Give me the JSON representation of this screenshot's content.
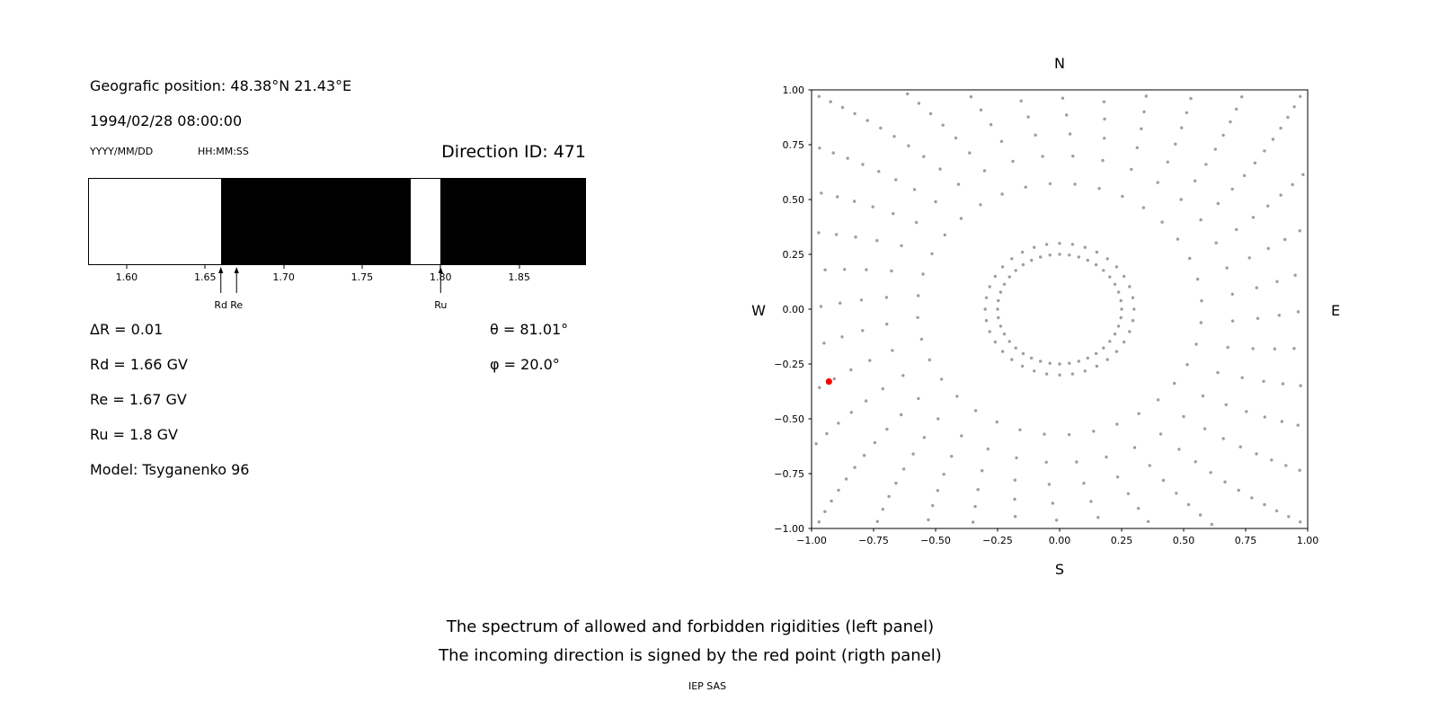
{
  "left_panel": {
    "position_label": "Geografic position: 48.38°N 21.43°E",
    "datetime": "1994/02/28 08:00:00",
    "date_format": "YYYY/MM/DD",
    "time_format": "HH:MM:SS",
    "direction_id": "Direction ID: 471",
    "delta_r_label": "ΔR = 0.01",
    "theta_label": "θ = 81.01°",
    "rd_label": "Rd = 1.66 GV",
    "phi_label": "φ = 20.0°",
    "re_label": "Re = 1.67 GV",
    "ru_label": "Ru = 1.8 GV",
    "model_label": "Model: Tsyganenko 96"
  },
  "captions": {
    "line1": "The spectrum of allowed and forbidden rigidities (left panel)",
    "line2": "The incoming direction is signed by the red point (rigth panel)",
    "credit": "IEP SAS"
  },
  "chart_data": [
    {
      "type": "bar",
      "name": "rigidity-spectrum",
      "description": "Spectrum of allowed (white) and forbidden (black) rigidities in GV",
      "x_range": [
        1.576,
        1.892
      ],
      "x_ticks": [
        1.6,
        1.65,
        1.7,
        1.75,
        1.8,
        1.85
      ],
      "x_tick_labels": [
        "1.60",
        "1.65",
        "1.70",
        "1.75",
        "1.80",
        "1.85"
      ],
      "forbidden_intervals_gv": [
        [
          1.66,
          1.781
        ],
        [
          1.8,
          1.892
        ]
      ],
      "allowed_color": "#ffffff",
      "forbidden_color": "#000000",
      "markers": [
        {
          "label": "Rd",
          "value": 1.66
        },
        {
          "label": "Re",
          "value": 1.67
        },
        {
          "label": "Ru",
          "value": 1.8
        }
      ]
    },
    {
      "type": "scatter",
      "name": "incoming-direction-map",
      "xlim": [
        -1,
        1
      ],
      "ylim": [
        -1,
        1
      ],
      "grid": false,
      "x_tick_values": [
        -1,
        -0.75,
        -0.5,
        -0.25,
        0,
        0.25,
        0.5,
        0.75,
        1
      ],
      "x_tick_labels": [
        "−1.00",
        "−0.75",
        "−0.50",
        "−0.25",
        "0.00",
        "0.25",
        "0.50",
        "0.75",
        "1.00"
      ],
      "y_tick_values": [
        1,
        0.75,
        0.5,
        0.25,
        0,
        -0.25,
        -0.5,
        -0.75,
        -1
      ],
      "y_tick_labels": [
        "1.00",
        "0.75",
        "0.50",
        "0.25",
        "0.00",
        "−0.25",
        "−0.50",
        "−0.75",
        "−1.00"
      ],
      "cardinal_labels": {
        "top": "N",
        "bottom": "S",
        "left": "W",
        "right": "E"
      },
      "gray_pattern": {
        "description": "gray sample dots: inner ring of radius 0.25 plus 36 radial spokes (every 10°) with points clustering toward the outer end, clipped at the axes box",
        "spoke_count": 36,
        "points_per_spoke": 14,
        "r_start": 0.3,
        "r_end": 1.42,
        "cluster_exponent": 0.55,
        "twist_deg_per_unit_r": 14,
        "ring_radius": 0.25,
        "ring_count": 40,
        "clip_limit": 1.01,
        "color": "#9e9e9e",
        "dot_radius_px": 1.7
      },
      "red_point": {
        "x": -0.93,
        "y": -0.33,
        "color": "#ff0000",
        "radius_px": 3.6
      }
    }
  ]
}
